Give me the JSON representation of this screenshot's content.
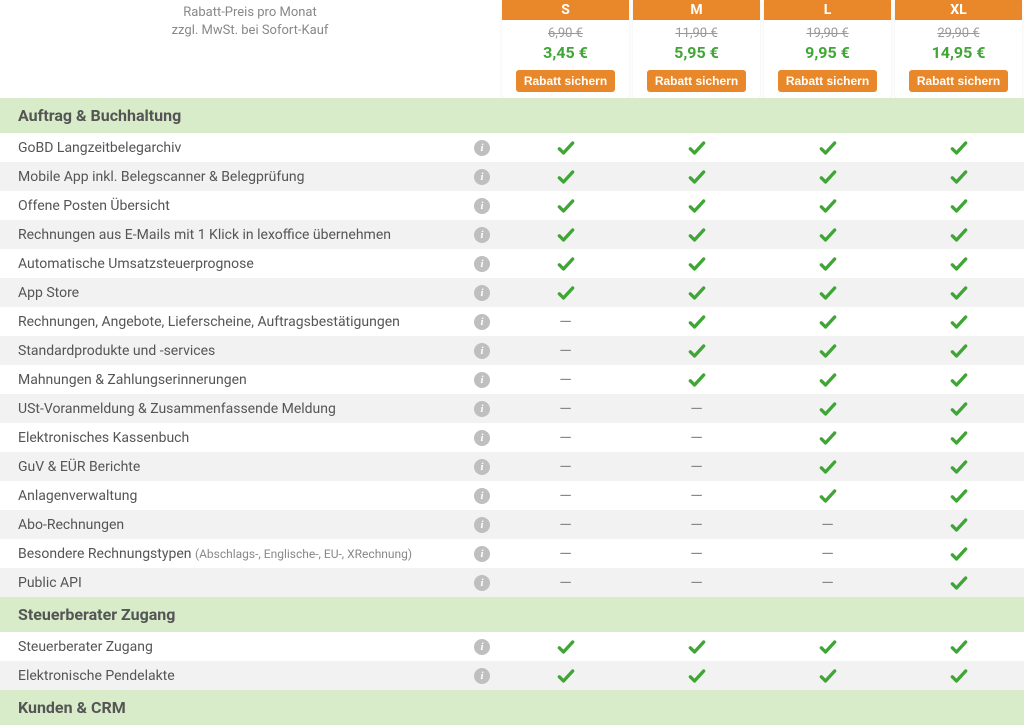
{
  "header": {
    "line1": "Rabatt-Preis pro Monat",
    "line2": "zzgl. MwSt. bei Sofort-Kauf"
  },
  "plans": [
    {
      "name": "S",
      "old": "6,90 €",
      "new": "3,45 €",
      "cta": "Rabatt sichern"
    },
    {
      "name": "M",
      "old": "11,90 €",
      "new": "5,95 €",
      "cta": "Rabatt sichern"
    },
    {
      "name": "L",
      "old": "19,90 €",
      "new": "9,95 €",
      "cta": "Rabatt sichern"
    },
    {
      "name": "XL",
      "old": "29,90 €",
      "new": "14,95 €",
      "cta": "Rabatt sichern"
    }
  ],
  "colors": {
    "accent_orange": "#e8882a",
    "accent_green": "#3fa535",
    "section_bg": "#d8ecc9",
    "row_alt": "#f2f2f2",
    "text": "#555555",
    "text_muted": "#888888",
    "info_bg": "#bfbfbf"
  },
  "sections": [
    {
      "title": "Auftrag & Buchhaltung",
      "rows": [
        {
          "label": "GoBD Langzeitbelegarchiv",
          "values": [
            "y",
            "y",
            "y",
            "y"
          ]
        },
        {
          "label": "Mobile App inkl. Belegscanner & Belegprüfung",
          "values": [
            "y",
            "y",
            "y",
            "y"
          ]
        },
        {
          "label": "Offene Posten Übersicht",
          "values": [
            "y",
            "y",
            "y",
            "y"
          ]
        },
        {
          "label": "Rechnungen aus E-Mails mit 1 Klick in lexoffice übernehmen",
          "values": [
            "y",
            "y",
            "y",
            "y"
          ]
        },
        {
          "label": "Automatische Umsatzsteuerprognose",
          "values": [
            "y",
            "y",
            "y",
            "y"
          ]
        },
        {
          "label": "App Store",
          "values": [
            "y",
            "y",
            "y",
            "y"
          ]
        },
        {
          "label": "Rechnungen, Angebote, Lieferscheine, Auftragsbestätigungen",
          "values": [
            "-",
            "y",
            "y",
            "y"
          ]
        },
        {
          "label": "Standardprodukte und -services",
          "values": [
            "-",
            "y",
            "y",
            "y"
          ]
        },
        {
          "label": "Mahnungen & Zahlungserinnerungen",
          "values": [
            "-",
            "y",
            "y",
            "y"
          ]
        },
        {
          "label": "USt-Voranmeldung & Zusammenfassende Meldung",
          "values": [
            "-",
            "-",
            "y",
            "y"
          ]
        },
        {
          "label": "Elektronisches Kassenbuch",
          "values": [
            "-",
            "-",
            "y",
            "y"
          ]
        },
        {
          "label": "GuV & EÜR Berichte",
          "values": [
            "-",
            "-",
            "y",
            "y"
          ]
        },
        {
          "label": "Anlagenverwaltung",
          "values": [
            "-",
            "-",
            "y",
            "y"
          ]
        },
        {
          "label": "Abo-Rechnungen",
          "values": [
            "-",
            "-",
            "-",
            "y"
          ]
        },
        {
          "label": "Besondere Rechnungstypen ",
          "sub": "(Abschlags-, Englische-, EU-, XRechnung)",
          "values": [
            "-",
            "-",
            "-",
            "y"
          ]
        },
        {
          "label": "Public API",
          "values": [
            "-",
            "-",
            "-",
            "y"
          ]
        }
      ]
    },
    {
      "title": "Steuerberater Zugang",
      "rows": [
        {
          "label": "Steuerberater Zugang",
          "values": [
            "y",
            "y",
            "y",
            "y"
          ]
        },
        {
          "label": "Elektronische Pendelakte",
          "values": [
            "y",
            "y",
            "y",
            "y"
          ]
        }
      ]
    },
    {
      "title": "Kunden & CRM",
      "rows": []
    }
  ]
}
